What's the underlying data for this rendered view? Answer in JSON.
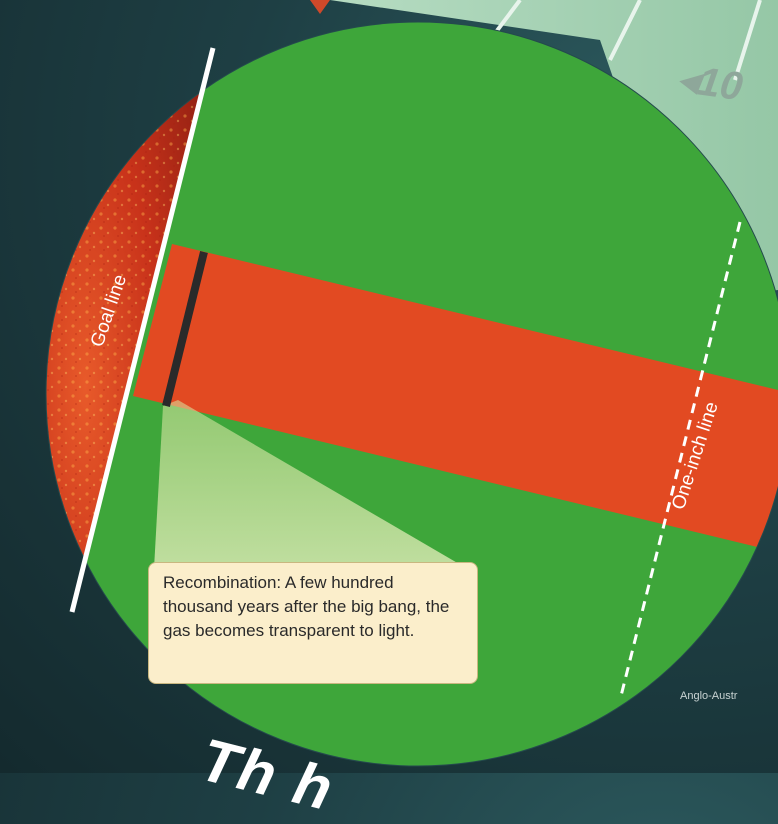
{
  "labels": {
    "goal_line": "Goal line",
    "one_inch_line": "One-inch line"
  },
  "callout": {
    "text": "Recombination: A few hundred thousand years after the big bang, the gas becomes transparent to light."
  },
  "background": {
    "yard_number": "◂10",
    "credit": "Anglo-Austr",
    "bottom_title_fragment": "Th          h"
  },
  "colors": {
    "field_green": "#3ea63a",
    "red_band": "#e24a22",
    "cosmic_red": "#c8321a",
    "callout_fill": "#fbeecb",
    "backdrop": "#1e3f44"
  }
}
